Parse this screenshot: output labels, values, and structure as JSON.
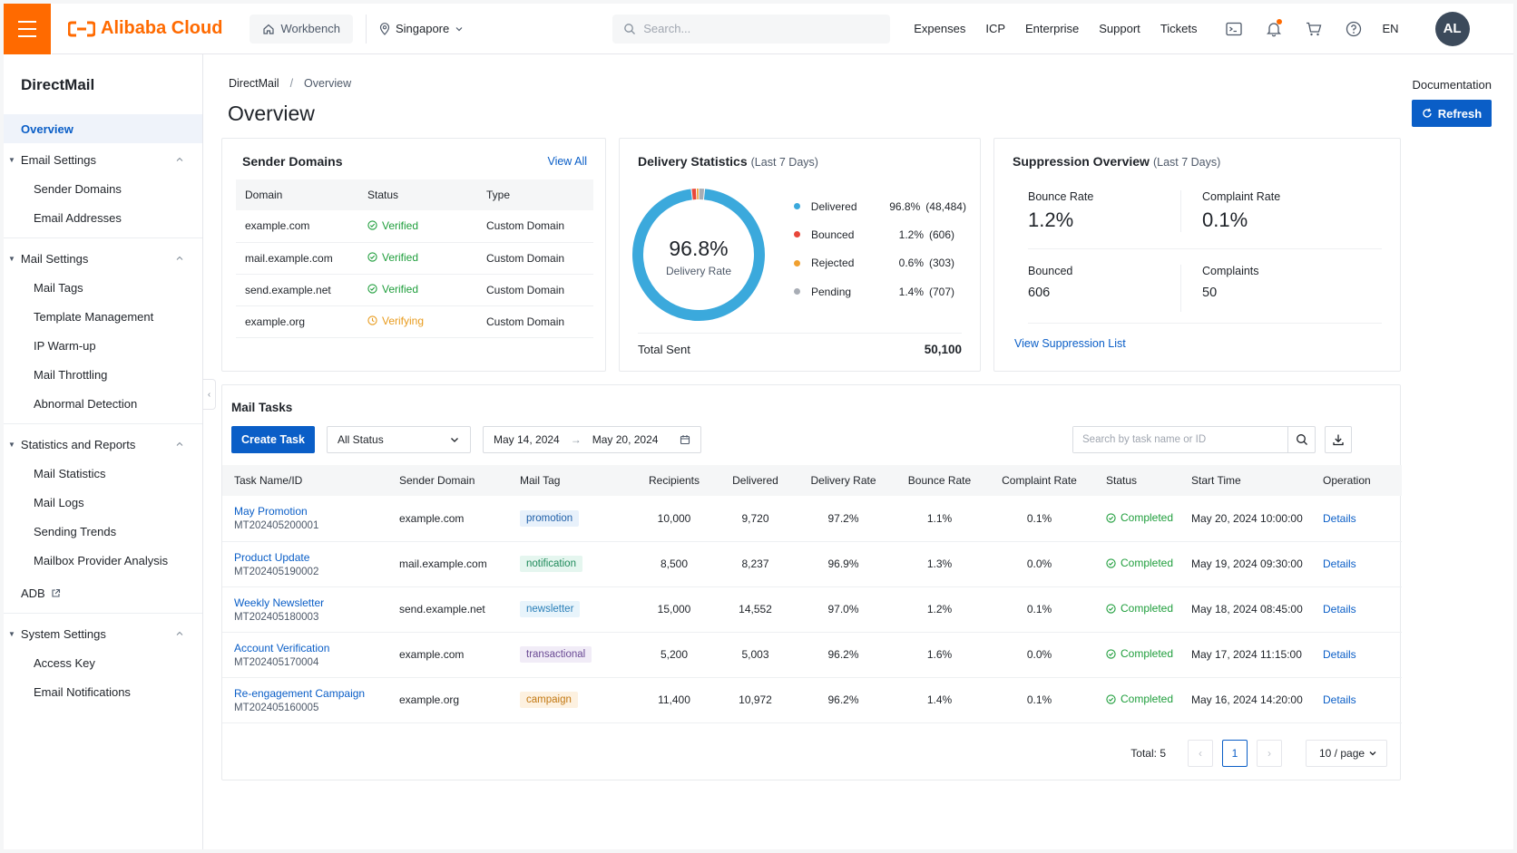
{
  "colors": {
    "brand": "#ff6a00",
    "primary": "#0a5ec7",
    "success": "#1f9e3c",
    "warning": "#e89b1d",
    "delivered": "#3ba9dc",
    "bounced": "#e8473a",
    "rejected": "#f0a030",
    "pending": "#a8adb5"
  },
  "topbar": {
    "brand_mark": "(-)",
    "brand_name": "Alibaba Cloud",
    "workbench": "Workbench",
    "region": "Singapore",
    "search_placeholder": "Search...",
    "links": [
      "Expenses",
      "ICP",
      "Enterprise",
      "Support",
      "Tickets"
    ],
    "lang": "EN",
    "avatar": "AL"
  },
  "sidebar": {
    "title": "DirectMail",
    "overview": "Overview",
    "groups": [
      {
        "label": "Email Settings",
        "items": [
          "Sender Domains",
          "Email Addresses"
        ]
      },
      {
        "label": "Mail Settings",
        "items": [
          "Mail Tags",
          "Template Management",
          "IP Warm-up",
          "Mail Throttling",
          "Abnormal Detection"
        ]
      },
      {
        "label": "Statistics and Reports",
        "items": [
          "Mail Statistics",
          "Mail Logs",
          "Sending Trends",
          "Mailbox Provider Analysis"
        ]
      }
    ],
    "adb": "ADB",
    "system": {
      "label": "System Settings",
      "items": [
        "Access Key",
        "Email Notifications"
      ]
    }
  },
  "page": {
    "breadcrumb": [
      "DirectMail",
      "Overview"
    ],
    "title": "Overview",
    "documentation": "Documentation",
    "refresh": "Refresh"
  },
  "sender_domains": {
    "title": "Sender Domains",
    "view_all": "View All",
    "columns": [
      "Domain",
      "Status",
      "Type"
    ],
    "rows": [
      {
        "domain": "example.com",
        "status": "Verified",
        "state": "ok",
        "type": "Custom Domain"
      },
      {
        "domain": "mail.example.com",
        "status": "Verified",
        "state": "ok",
        "type": "Custom Domain"
      },
      {
        "domain": "send.example.net",
        "status": "Verified",
        "state": "ok",
        "type": "Custom Domain"
      },
      {
        "domain": "example.org",
        "status": "Verifying",
        "state": "warn",
        "type": "Custom Domain"
      }
    ]
  },
  "delivery": {
    "title": "Delivery Statistics",
    "subtitle": "(Last 7 Days)",
    "rate": "96.8%",
    "rate_label": "Delivery Rate",
    "legend": [
      {
        "name": "Delivered",
        "pct": "96.8%",
        "count": "(48,484)",
        "value": 96.8,
        "color": "#3ba9dc"
      },
      {
        "name": "Bounced",
        "pct": "1.2%",
        "count": "(606)",
        "value": 1.2,
        "color": "#e8473a"
      },
      {
        "name": "Rejected",
        "pct": "0.6%",
        "count": "(303)",
        "value": 0.6,
        "color": "#f0a030"
      },
      {
        "name": "Pending",
        "pct": "1.4%",
        "count": "(707)",
        "value": 1.4,
        "color": "#a8adb5"
      }
    ],
    "total_label": "Total Sent",
    "total": "50,100"
  },
  "suppression": {
    "title": "Suppression Overview",
    "subtitle": "(Last 7 Days)",
    "bounce_rate_label": "Bounce Rate",
    "bounce_rate": "1.2%",
    "complaint_rate_label": "Complaint Rate",
    "complaint_rate": "0.1%",
    "bounced_label": "Bounced",
    "bounced": "606",
    "complaints_label": "Complaints",
    "complaints": "50",
    "link": "View Suppression List"
  },
  "tasks": {
    "title": "Mail Tasks",
    "create": "Create Task",
    "status_filter": "All Status",
    "date_from": "May 14, 2024",
    "date_to": "May 20, 2024",
    "search_placeholder": "Search by task name or ID",
    "columns": [
      "Task Name/ID",
      "Sender Domain",
      "Mail Tag",
      "Recipients",
      "Delivered",
      "Delivery Rate",
      "Bounce Rate",
      "Complaint Rate",
      "Status",
      "Start Time",
      "Operation"
    ],
    "rows": [
      {
        "name": "May Promotion",
        "id": "MT202405200001",
        "domain": "example.com",
        "tag": "promotion",
        "tag_bg": "#e8f1fb",
        "tag_fg": "#1f5fa8",
        "recipients": "10,000",
        "delivered": "9,720",
        "drate": "97.2%",
        "brate": "1.1%",
        "crate": "0.1%",
        "status": "Completed",
        "start": "May 20, 2024 10:00:00",
        "op": "Details"
      },
      {
        "name": "Product Update",
        "id": "MT202405190002",
        "domain": "mail.example.com",
        "tag": "notification",
        "tag_bg": "#e5f6ef",
        "tag_fg": "#1e8a5a",
        "recipients": "8,500",
        "delivered": "8,237",
        "drate": "96.9%",
        "brate": "1.3%",
        "crate": "0.0%",
        "status": "Completed",
        "start": "May 19, 2024 09:30:00",
        "op": "Details"
      },
      {
        "name": "Weekly Newsletter",
        "id": "MT202405180003",
        "domain": "send.example.net",
        "tag": "newsletter",
        "tag_bg": "#e8f4fb",
        "tag_fg": "#2a7fb8",
        "recipients": "15,000",
        "delivered": "14,552",
        "drate": "97.0%",
        "brate": "1.2%",
        "crate": "0.1%",
        "status": "Completed",
        "start": "May 18, 2024 08:45:00",
        "op": "Details"
      },
      {
        "name": "Account Verification",
        "id": "MT202405170004",
        "domain": "example.com",
        "tag": "transactional",
        "tag_bg": "#f1ecf7",
        "tag_fg": "#6a4a94",
        "recipients": "5,200",
        "delivered": "5,003",
        "drate": "96.2%",
        "brate": "1.6%",
        "crate": "0.0%",
        "status": "Completed",
        "start": "May 17, 2024 11:15:00",
        "op": "Details"
      },
      {
        "name": "Re-engagement Campaign",
        "id": "MT202405160005",
        "domain": "example.org",
        "tag": "campaign",
        "tag_bg": "#fdf1e0",
        "tag_fg": "#c27812",
        "recipients": "11,400",
        "delivered": "10,972",
        "drate": "96.2%",
        "brate": "1.4%",
        "crate": "0.1%",
        "status": "Completed",
        "start": "May 16, 2024 14:20:00",
        "op": "Details"
      }
    ],
    "total": "Total: 5",
    "page": "1",
    "page_size": "10 / page"
  }
}
